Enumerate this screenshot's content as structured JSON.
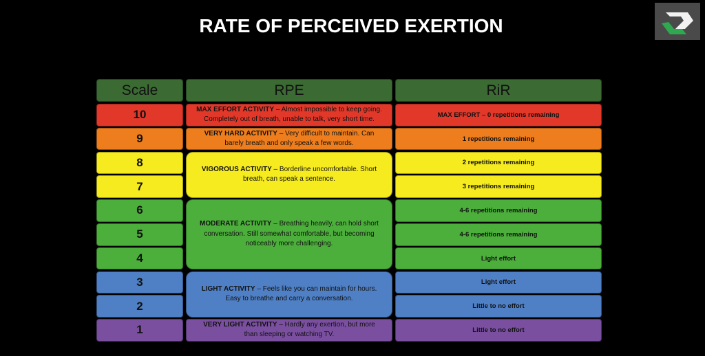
{
  "header": {
    "title": "RATE OF PERCEIVED EXERTION"
  },
  "table": {
    "columns": [
      "Scale",
      "RPE",
      "RiR"
    ],
    "rows": [
      {
        "scale": 10,
        "rir": "MAX EFFORT – 0 repetitions remaining"
      },
      {
        "scale": 9,
        "rir": "1 repetitions remaining"
      },
      {
        "scale": 8,
        "rir": "2 repetitions remaining"
      },
      {
        "scale": 7,
        "rir": "3 repetitions remaining"
      },
      {
        "scale": 6,
        "rir": "4-6 repetitions remaining"
      },
      {
        "scale": 5,
        "rir": "4-6 repetitions remaining"
      },
      {
        "scale": 4,
        "rir": "Light effort"
      },
      {
        "scale": 3,
        "rir": "Light effort"
      },
      {
        "scale": 2,
        "rir": "Little to no effort"
      },
      {
        "scale": 1,
        "rir": "Little to no effort"
      }
    ],
    "rpe": [
      {
        "lead": "MAX EFFORT ACTIVITY",
        "text": " – Almost impossible to keep going. Completely out of breath, unable to talk, very short time."
      },
      {
        "lead": "VERY HARD ACTIVITY",
        "text": " – Very difficult to maintain. Can barely breath and only speak a few words."
      },
      {
        "lead": "VIGOROUS ACTIVITY",
        "text": " – Borderline uncomfortable. Short breath, can speak a sentence."
      },
      {
        "lead": "MODERATE ACTIVITY",
        "text": " – Breathing heavily, can hold short conversation. Still somewhat comfortable, but becoming noticeably more challenging."
      },
      {
        "lead": "LIGHT ACTIVITY",
        "text": " – Feels like you can maintain for hours. Easy to breathe and carry a conversation."
      },
      {
        "lead": "VERY LIGHT ACTIVITY",
        "text": " – Hardly any exertion, but more than sleeping or watching TV."
      }
    ]
  }
}
